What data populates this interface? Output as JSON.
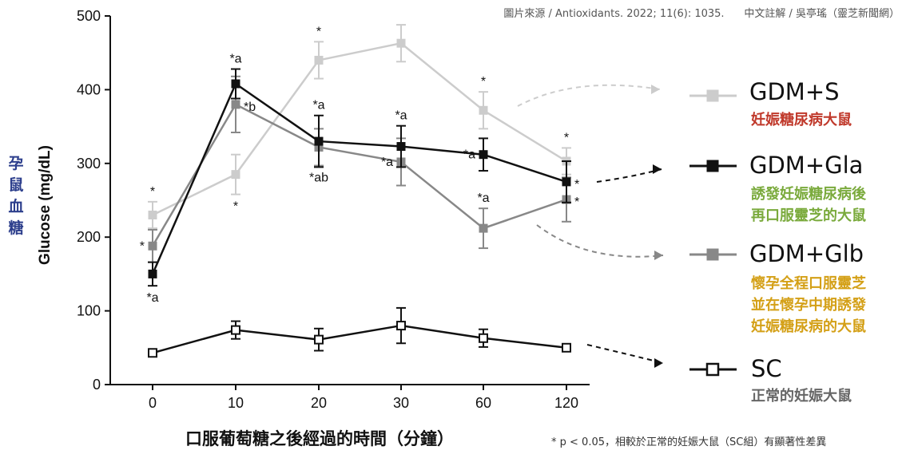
{
  "source_note": "圖片來源 / Antioxidants. 2022; 11(6): 1035.      中文註解 / 吳亭瑤（靈芝新聞網）",
  "y_axis_chinese": "孕鼠血糖",
  "x_axis_chinese": "口服葡萄糖之後經過的時間（分鐘）",
  "footnote": "* p < 0.05，相較於正常的妊娠大鼠（SC組）有顯著性差異",
  "legend": [
    {
      "name": "GDM+S",
      "desc": "妊娠糖尿病大鼠",
      "desc_color": "#c0392b"
    },
    {
      "name": "GDM+Gla",
      "desc": "誘發妊娠糖尿病後\n再口服靈芝的大鼠",
      "desc_color": "#7aaa3c"
    },
    {
      "name": "GDM+Glb",
      "desc": "懷孕全程口服靈芝\n並在懷孕中期誘發\n妊娠糖尿病的大鼠",
      "desc_color": "#d4a017"
    },
    {
      "name": "SC",
      "desc": "正常的妊娠大鼠",
      "desc_color": "#666666"
    }
  ],
  "chart_data": {
    "type": "line",
    "ylabel": "Glucose (mg/dL)",
    "xlabel": "",
    "categories": [
      "0",
      "10",
      "20",
      "30",
      "60",
      "120"
    ],
    "ylim": [
      0,
      500
    ],
    "yticks": [
      "0",
      "100",
      "200",
      "300",
      "400",
      "500"
    ],
    "grid": false,
    "series": [
      {
        "name": "GDM+S",
        "color": "#cccccc",
        "marker": "square-filled",
        "values": [
          230,
          285,
          440,
          463,
          372,
          303
        ],
        "errors": [
          18,
          27,
          25,
          25,
          25,
          18
        ],
        "annotations": [
          [
            "*",
            "above"
          ],
          [
            "*",
            "below"
          ],
          [
            "*",
            "above"
          ],
          [
            "",
            ""
          ],
          [
            "*",
            "above"
          ],
          [
            "*",
            "above"
          ]
        ]
      },
      {
        "name": "GDM+Gla",
        "color": "#111111",
        "marker": "square-filled",
        "values": [
          150,
          408,
          330,
          323,
          312,
          275
        ],
        "errors": [
          16,
          20,
          35,
          28,
          22,
          28
        ],
        "annotations": [
          [
            "*a",
            "below"
          ],
          [
            "*a",
            "above"
          ],
          [
            "*a",
            "above"
          ],
          [
            "*a",
            "above"
          ],
          [
            "*a",
            "left"
          ],
          [
            "*",
            "right"
          ]
        ]
      },
      {
        "name": "GDM+Glb",
        "color": "#888888",
        "marker": "square-filled",
        "values": [
          188,
          380,
          322,
          302,
          212,
          251
        ],
        "errors": [
          22,
          38,
          25,
          32,
          27,
          30
        ],
        "annotations": [
          [
            "*",
            "left"
          ],
          [
            "*b",
            "right"
          ],
          [
            "*ab",
            "below"
          ],
          [
            "*a",
            "left"
          ],
          [
            "*a",
            "above"
          ],
          [
            "*",
            "right"
          ]
        ]
      },
      {
        "name": "SC",
        "color": "#111111",
        "marker": "square-open",
        "values": [
          43,
          74,
          61,
          80,
          63,
          50
        ],
        "errors": [
          4,
          12,
          15,
          24,
          12,
          4
        ],
        "annotations": [
          [
            "",
            ""
          ],
          [
            "",
            ""
          ],
          [
            "",
            ""
          ],
          [
            "",
            ""
          ],
          [
            "",
            ""
          ],
          [
            "",
            ""
          ]
        ]
      }
    ]
  }
}
